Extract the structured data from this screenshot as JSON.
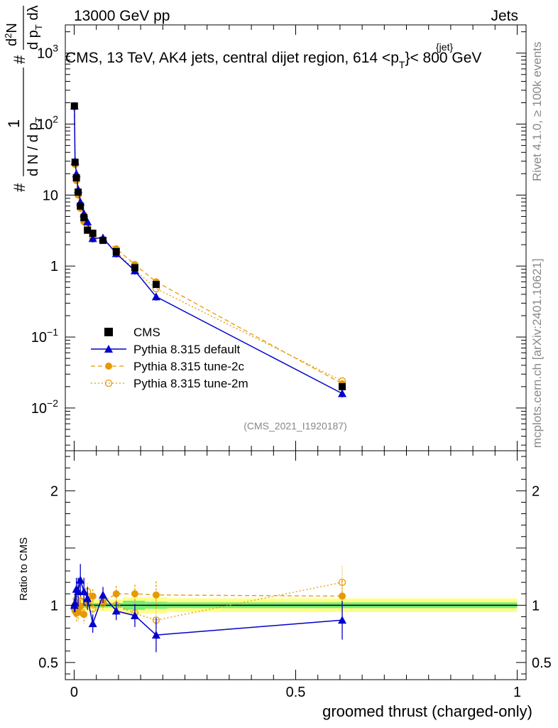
{
  "header": {
    "energy": "13000 GeV pp",
    "category": "Jets"
  },
  "side_text": {
    "rivet": "Rivet 4.1.0, ≥ 100k events",
    "mcplots": "mcplots.cern.ch [arXiv:2401.10621]"
  },
  "colors": {
    "cms": "#000000",
    "default": "#0000cc",
    "tune2c": "#e69a00",
    "tune2m": "#e69a00",
    "band_inner": "#77ee77",
    "band_outer": "#ffff88"
  },
  "chart_data": [
    {
      "type": "scatter",
      "panel": "main",
      "title": "CMS, 13 TeV, AK4 jets, central dijet region, 614 <p",
      "title_sub": "T",
      "title_sup": "{jet}",
      "title_tail": "}< 800 GeV",
      "analysis_id": "(CMS_2021_I1920187)",
      "ylabel": {
        "hash1": "#",
        "one": "1",
        "dN_over": "d N / d p",
        "dN_sub": "T",
        "hash2": "#",
        "num": "d",
        "num_sup": "2",
        "num_tail": "N",
        "den": "d p",
        "den_sub": "T",
        "den_tail": " dλ"
      },
      "yscale": "log",
      "ylim": [
        0.0025,
        2500
      ],
      "xlim": [
        -0.02,
        1.02
      ],
      "y_ticks": [
        {
          "v": 0.01,
          "base": "10",
          "exp": "−2"
        },
        {
          "v": 0.1,
          "base": "10",
          "exp": "−1"
        },
        {
          "v": 1,
          "label": "1"
        },
        {
          "v": 10,
          "label": "10"
        },
        {
          "v": 100,
          "base": "10",
          "exp": "2"
        },
        {
          "v": 1000,
          "base": "10",
          "exp": "3"
        }
      ],
      "legend_position": "lower-left",
      "legend": [
        {
          "key": "cms",
          "label": "CMS"
        },
        {
          "key": "default",
          "label": "Pythia 8.315 default"
        },
        {
          "key": "tune2c",
          "label": "Pythia 8.315 tune-2c"
        },
        {
          "key": "tune2m",
          "label": "Pythia 8.315 tune-2m"
        }
      ],
      "x": [
        0.0005,
        0.002,
        0.005,
        0.009,
        0.014,
        0.022,
        0.03,
        0.042,
        0.065,
        0.095,
        0.137,
        0.185,
        0.605
      ],
      "series": [
        {
          "name": "CMS",
          "key": "cms",
          "values": [
            180,
            29,
            17.5,
            11,
            7,
            4.8,
            3.2,
            2.9,
            2.3,
            1.6,
            0.95,
            0.55,
            0.02
          ]
        },
        {
          "name": "Pythia 8.315 default",
          "key": "default",
          "values": [
            180,
            30,
            20,
            12,
            8,
            5.5,
            4.2,
            2.45,
            2.5,
            1.5,
            0.86,
            0.37,
            0.016
          ]
        },
        {
          "name": "Pythia 8.315 tune-2c",
          "key": "tune2c",
          "values": [
            175,
            27,
            16,
            10,
            6.5,
            4.2,
            3.3,
            2.4,
            2.3,
            1.75,
            1.05,
            0.6,
            0.022
          ]
        },
        {
          "name": "Pythia 8.315 tune-2m",
          "key": "tune2m",
          "values": [
            178,
            29,
            17,
            11,
            7.2,
            5.2,
            3.6,
            2.6,
            2.35,
            1.6,
            0.88,
            0.48,
            0.024
          ]
        }
      ]
    },
    {
      "type": "scatter",
      "panel": "ratio",
      "ylabel": "Ratio to CMS",
      "xlabel": "groomed thrust (charged-only)",
      "ylim": [
        0.35,
        2.35
      ],
      "xlim": [
        -0.02,
        1.02
      ],
      "y_ticks": [
        {
          "v": 0.5,
          "label": "0.5"
        },
        {
          "v": 1,
          "label": "1"
        },
        {
          "v": 2,
          "label": "2"
        }
      ],
      "x_ticks": [
        {
          "v": 0,
          "label": "0"
        },
        {
          "v": 0.5,
          "label": "0.5"
        },
        {
          "v": 1,
          "label": "1"
        }
      ],
      "band": [
        {
          "x0": 0.0,
          "x1": 0.11,
          "inner": 0.02,
          "outer": 0.05
        },
        {
          "x0": 0.11,
          "x1": 0.16,
          "inner": 0.04,
          "outer": 0.07
        },
        {
          "x0": 0.16,
          "x1": 0.21,
          "inner": 0.03,
          "outer": 0.07
        },
        {
          "x0": 0.21,
          "x1": 1.0,
          "inner": 0.025,
          "outer": 0.06
        }
      ],
      "x": [
        0.0005,
        0.002,
        0.005,
        0.009,
        0.014,
        0.022,
        0.03,
        0.042,
        0.065,
        0.095,
        0.137,
        0.185,
        0.605
      ],
      "series": [
        {
          "name": "Pythia 8.315 default",
          "key": "default",
          "values": [
            1.0,
            1.02,
            1.14,
            1.12,
            1.22,
            1.12,
            1.06,
            0.84,
            1.09,
            0.95,
            0.91,
            0.74,
            0.87
          ],
          "err": [
            0.06,
            0.08,
            0.1,
            0.12,
            0.14,
            0.12,
            0.1,
            0.08,
            0.07,
            0.08,
            0.1,
            0.15,
            0.17
          ]
        },
        {
          "name": "Pythia 8.315 tune-2c",
          "key": "tune2c",
          "values": [
            0.97,
            0.95,
            0.93,
            0.94,
            0.99,
            0.92,
            1.03,
            1.08,
            1.03,
            1.1,
            1.1,
            1.09,
            1.08
          ],
          "err": [
            0.05,
            0.06,
            0.07,
            0.08,
            0.09,
            0.08,
            0.07,
            0.06,
            0.06,
            0.07,
            0.08,
            0.12,
            0.14
          ]
        },
        {
          "name": "Pythia 8.315 tune-2m",
          "key": "tune2m",
          "values": [
            0.98,
            1.0,
            1.05,
            1.0,
            1.03,
            1.08,
            1.12,
            0.97,
            1.02,
            1.0,
            0.93,
            0.87,
            1.2
          ],
          "err": [
            0.05,
            0.06,
            0.07,
            0.08,
            0.09,
            0.08,
            0.07,
            0.06,
            0.06,
            0.07,
            0.08,
            0.12,
            0.14
          ]
        }
      ]
    }
  ]
}
